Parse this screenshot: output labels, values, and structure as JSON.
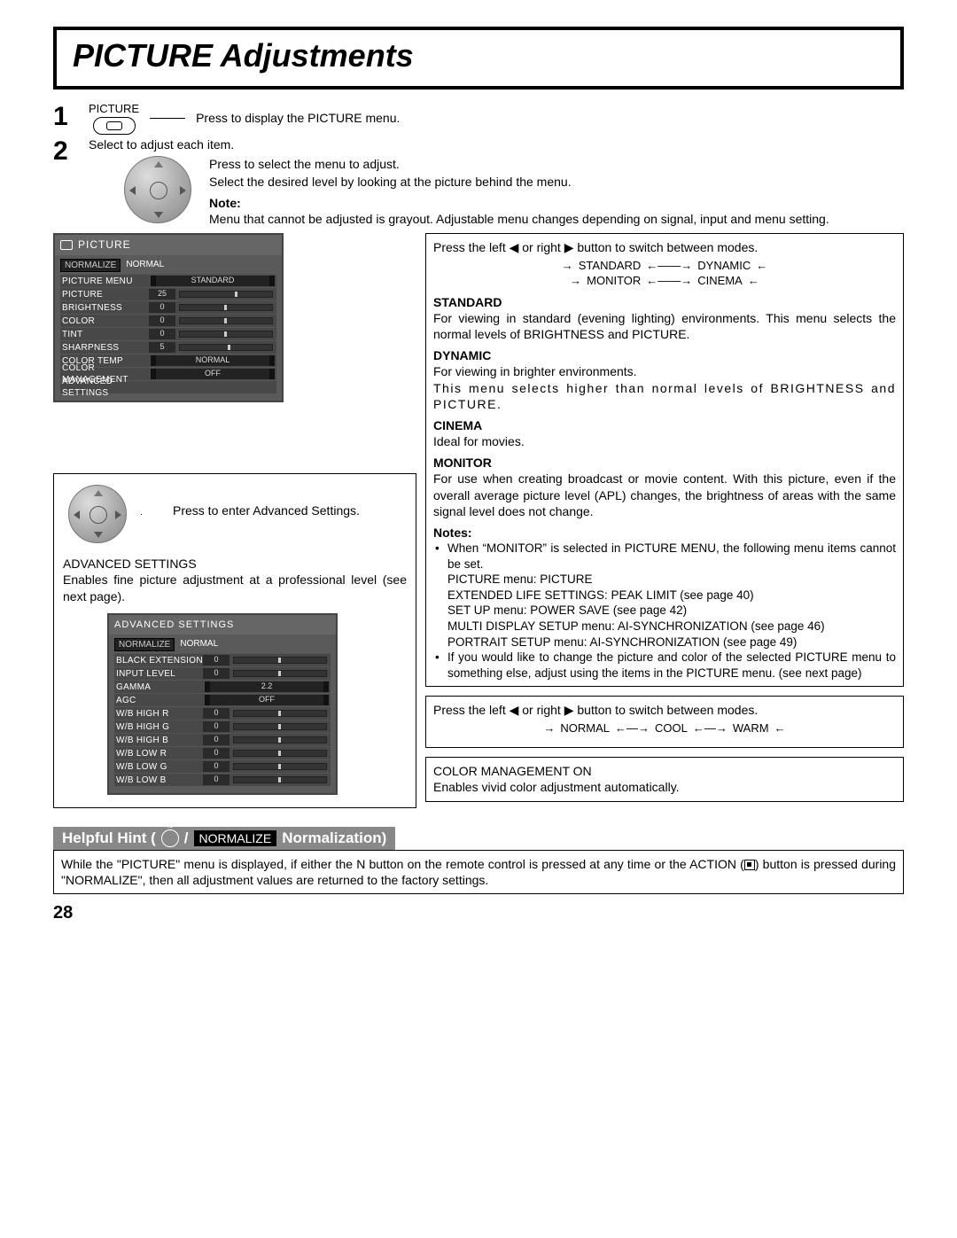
{
  "title": "PICTURE Adjustments",
  "step1": {
    "btn_label": "PICTURE",
    "text": "Press to display the PICTURE menu."
  },
  "step2": {
    "intro": "Select to adjust each item.",
    "line1": "Press to select the menu to adjust.",
    "line2": "Select the desired level by looking at the picture behind the menu.",
    "note_label": "Note:",
    "note_text": "Menu that cannot be adjusted is grayout. Adjustable menu changes depending on signal, input and menu setting."
  },
  "osd_picture": {
    "title": "PICTURE",
    "normalize": "NORMALIZE",
    "normal": "NORMAL",
    "rows": [
      {
        "label": "PICTURE MENU",
        "type": "opt",
        "value": "STANDARD"
      },
      {
        "label": "PICTURE",
        "type": "slider",
        "value": "25",
        "knob": 60
      },
      {
        "label": "BRIGHTNESS",
        "type": "slider",
        "value": "0",
        "knob": 48
      },
      {
        "label": "COLOR",
        "type": "slider",
        "value": "0",
        "knob": 48
      },
      {
        "label": "TINT",
        "type": "slider",
        "value": "0",
        "knob": 48
      },
      {
        "label": "SHARPNESS",
        "type": "slider",
        "value": "5",
        "knob": 52
      },
      {
        "label": "COLOR TEMP",
        "type": "opt",
        "value": "NORMAL"
      },
      {
        "label": "COLOR MANAGEMENT",
        "type": "opt",
        "value": "OFF"
      },
      {
        "label": "ADVANCED SETTINGS",
        "type": "plain",
        "value": ""
      }
    ]
  },
  "adv_block": {
    "press_text": "Press to enter Advanced Settings.",
    "heading": "ADVANCED SETTINGS",
    "desc": "Enables fine picture adjustment at a professional level (see next page)."
  },
  "osd_adv": {
    "title": "ADVANCED SETTINGS",
    "normalize": "NORMALIZE",
    "normal": "NORMAL",
    "rows": [
      {
        "label": "BLACK EXTENSION",
        "type": "slider",
        "value": "0",
        "knob": 48
      },
      {
        "label": "INPUT LEVEL",
        "type": "slider",
        "value": "0",
        "knob": 48
      },
      {
        "label": "GAMMA",
        "type": "opt",
        "value": "2.2"
      },
      {
        "label": "AGC",
        "type": "opt",
        "value": "OFF"
      },
      {
        "label": "W/B HIGH R",
        "type": "slider",
        "value": "0",
        "knob": 48
      },
      {
        "label": "W/B HIGH G",
        "type": "slider",
        "value": "0",
        "knob": 48
      },
      {
        "label": "W/B HIGH B",
        "type": "slider",
        "value": "0",
        "knob": 48
      },
      {
        "label": "W/B LOW R",
        "type": "slider",
        "value": "0",
        "knob": 48
      },
      {
        "label": "W/B LOW G",
        "type": "slider",
        "value": "0",
        "knob": 48
      },
      {
        "label": "W/B LOW B",
        "type": "slider",
        "value": "0",
        "knob": 48
      }
    ]
  },
  "modes_box": {
    "intro": "Press the left ◀ or right ▶ button to switch between modes.",
    "cycle": [
      "STANDARD",
      "DYNAMIC",
      "MONITOR",
      "CINEMA"
    ],
    "standard": {
      "h": "STANDARD",
      "t": "For viewing in standard (evening lighting) environments. This menu selects the normal levels of BRIGHTNESS and PICTURE."
    },
    "dynamic": {
      "h": "DYNAMIC",
      "t1": "For viewing in brighter environments.",
      "t2": "This menu selects higher than normal levels of BRIGHTNESS and PICTURE."
    },
    "cinema": {
      "h": "CINEMA",
      "t": "Ideal for movies."
    },
    "monitor": {
      "h": "MONITOR",
      "t": "For use when creating broadcast or movie content. With this picture, even if the overall average picture level (APL) changes, the brightness of areas with the same signal level does not change."
    },
    "notes_h": "Notes:",
    "notes": [
      "When “MONITOR” is selected in PICTURE MENU, the following menu items cannot be set.\nPICTURE menu: PICTURE\nEXTENDED LIFE SETTINGS: PEAK LIMIT (see page 40)\nSET UP menu: POWER SAVE (see page 42)\nMULTI DISPLAY SETUP menu: AI-SYNCHRONIZATION (see page 46)\nPORTRAIT SETUP menu: AI-SYNCHRONIZATION (see page 49)",
      "If you would like to change the picture and color of the selected PICTURE menu to something else, adjust using the items in the PICTURE menu. (see next page)"
    ]
  },
  "temp_box": {
    "intro": "Press the left ◀ or right ▶ button to switch between modes.",
    "cycle": [
      "NORMAL",
      "COOL",
      "WARM"
    ]
  },
  "cm_box": {
    "line1": "COLOR MANAGEMENT ON",
    "line2": "Enables vivid color adjustment automatically."
  },
  "hint": {
    "label_a": "Helpful Hint (",
    "norm": "NORMALIZE",
    "label_b": " Normalization)",
    "text": "While the “PICTURE” menu is displayed, if either the N button on the remote control is pressed at any time or the ACTION (■) button is pressed during “NORMALIZE”, then all adjustment values are returned to the factory settings."
  },
  "page_number": "28"
}
